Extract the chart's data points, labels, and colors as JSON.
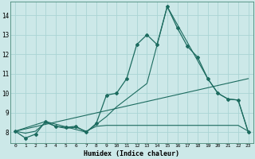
{
  "xlabel": "Humidex (Indice chaleur)",
  "xlim": [
    -0.5,
    23.5
  ],
  "ylim": [
    7.45,
    14.7
  ],
  "xticks": [
    0,
    1,
    2,
    3,
    4,
    5,
    6,
    7,
    8,
    9,
    10,
    11,
    12,
    13,
    14,
    15,
    16,
    17,
    18,
    19,
    20,
    21,
    22,
    23
  ],
  "yticks": [
    8,
    9,
    10,
    11,
    12,
    13,
    14
  ],
  "bg_color": "#cce8e8",
  "line_color": "#1c6b5f",
  "grid_color": "#aad4d4",
  "line1_x": [
    0,
    1,
    2,
    3,
    4,
    5,
    6,
    7,
    8,
    9,
    10,
    11,
    12,
    13,
    14,
    15,
    16,
    17,
    18,
    19,
    20,
    21,
    22,
    23
  ],
  "line1_y": [
    8.05,
    7.7,
    7.9,
    8.55,
    8.3,
    8.25,
    8.3,
    8.0,
    8.45,
    9.9,
    10.0,
    10.75,
    12.5,
    13.0,
    12.5,
    14.45,
    13.35,
    12.4,
    11.85,
    10.75,
    10.0,
    9.7,
    9.65,
    8.0
  ],
  "line2_x": [
    0,
    1,
    2,
    3,
    4,
    5,
    6,
    7,
    8,
    9,
    10,
    11,
    12,
    13,
    14,
    15,
    16,
    17,
    18,
    19,
    20,
    21,
    22,
    23
  ],
  "line2_y": [
    8.05,
    7.95,
    8.05,
    8.5,
    8.3,
    8.2,
    8.25,
    8.05,
    8.3,
    8.35,
    8.35,
    8.35,
    8.35,
    8.35,
    8.35,
    8.35,
    8.35,
    8.35,
    8.35,
    8.35,
    8.35,
    8.35,
    8.35,
    8.05
  ],
  "line3_x": [
    0,
    3,
    7,
    9,
    10,
    13,
    15,
    19,
    20,
    21,
    22,
    23
  ],
  "line3_y": [
    8.05,
    8.55,
    8.0,
    8.8,
    9.3,
    10.5,
    14.45,
    10.75,
    10.0,
    9.7,
    9.65,
    8.0
  ],
  "line4_x": [
    0,
    23
  ],
  "line4_y": [
    8.05,
    10.75
  ]
}
